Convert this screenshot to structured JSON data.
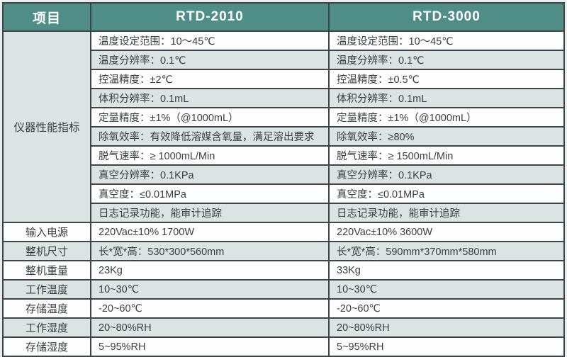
{
  "header": {
    "item": "项目",
    "model_a": "RTD-2010",
    "model_b": "RTD-3000"
  },
  "performance": {
    "group_label": "仪器性能指标",
    "rows": [
      {
        "a": "温度设定范围：10～45℃",
        "b": "温度设定范围：10～45℃"
      },
      {
        "a": "温度分辨率：0.1℃",
        "b": "温度分辨率：0.1℃"
      },
      {
        "a": "控温精度：±2℃",
        "b": "控温精度：±0.5℃"
      },
      {
        "a": "体积分辨率：0.1mL",
        "b": "体积分辨率：0.1mL"
      },
      {
        "a": "定量精度：±1%（@1000mL）",
        "b": "定量精度：±1%（@1000mL）"
      },
      {
        "a": "除氧效率：有效降低溶媒含氧量，满足溶出要求",
        "b": "除氧效率：≥80%"
      },
      {
        "a": "脱气速率：≥ 1000mL/Min",
        "b": "脱气速率：≥ 1500mL/Min"
      },
      {
        "a": "真空分辨率：0.1KPa",
        "b": "真空分辨率：0.1KPa"
      },
      {
        "a": "真空度：≤0.01MPa",
        "b": "真空度：≤0.01MPa"
      },
      {
        "a": "日志记录功能，能审计追踪",
        "b": "日志记录功能，能审计追踪"
      }
    ]
  },
  "specs": {
    "rows": [
      {
        "label": "输入电源",
        "a": "220Vac±10% 1700W",
        "b": "220Vac±10% 3600W"
      },
      {
        "label": "整机尺寸",
        "a": "长*宽*高：530*300*560mm",
        "b": "长*宽*高：590mm*370mm*580mm"
      },
      {
        "label": "整机重量",
        "a": "23Kg",
        "b": "33Kg"
      },
      {
        "label": "工作温度",
        "a": "10~30℃",
        "b": "10~30℃"
      },
      {
        "label": "存储温度",
        "a": "-20~60℃",
        "b": "-20~60℃"
      },
      {
        "label": "工作湿度",
        "a": "20~80%RH",
        "b": "20~80%RH"
      },
      {
        "label": "存储湿度",
        "a": "5~95%RH",
        "b": "5~95%RH"
      }
    ]
  },
  "colors": {
    "header_bg": "#4f8e87",
    "stripe_bg": "#dce3e3",
    "border": "#3d444b",
    "header_text": "#ffffff",
    "body_text": "#3a3d40"
  }
}
